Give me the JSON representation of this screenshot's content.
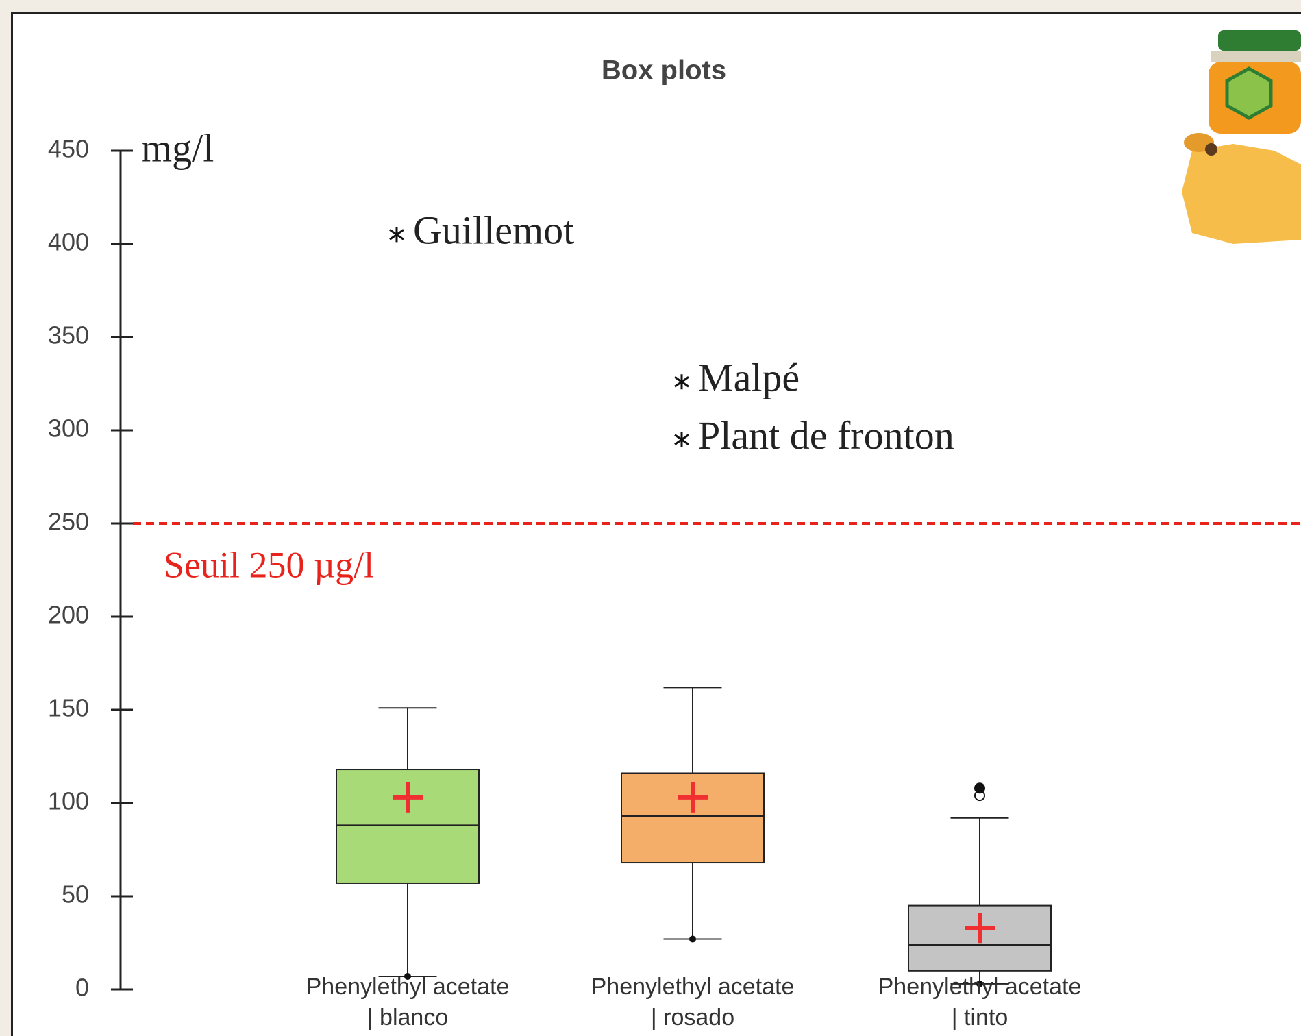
{
  "chart_data": {
    "type": "box",
    "title": "Box plots",
    "y_unit": "mg/l",
    "categories": [
      "Phenylethyl acetate | blanco",
      "Phenylethyl acetate | rosado",
      "Phenylethyl acetate | tinto"
    ],
    "series": [
      {
        "color": "#a8da78",
        "min": 7,
        "q1": 57,
        "median": 88,
        "q3": 118,
        "max": 151,
        "mean": 103,
        "outliers": [],
        "labeled_outliers": [
          {
            "label": "Guillemot",
            "value": 405
          }
        ]
      },
      {
        "color": "#f4ae69",
        "min": 27,
        "q1": 68,
        "median": 93,
        "q3": 116,
        "max": 162,
        "mean": 103,
        "outliers": [],
        "labeled_outliers": [
          {
            "label": "Malpé",
            "value": 326
          },
          {
            "label": "Plant de fronton",
            "value": 295
          }
        ]
      },
      {
        "color": "#c4c4c4",
        "min": 3,
        "q1": 10,
        "median": 24,
        "q3": 45,
        "max": 92,
        "mean": 33,
        "outliers": [
          108,
          104
        ],
        "labeled_outliers": []
      }
    ],
    "mean_color": "#f03030",
    "threshold": {
      "value": 250,
      "label": "Seuil 250 µg/l",
      "color": "#e8231c"
    },
    "ylim": [
      0,
      450
    ],
    "yticks": [
      0,
      50,
      100,
      150,
      200,
      250,
      300,
      350,
      400,
      450
    ]
  }
}
